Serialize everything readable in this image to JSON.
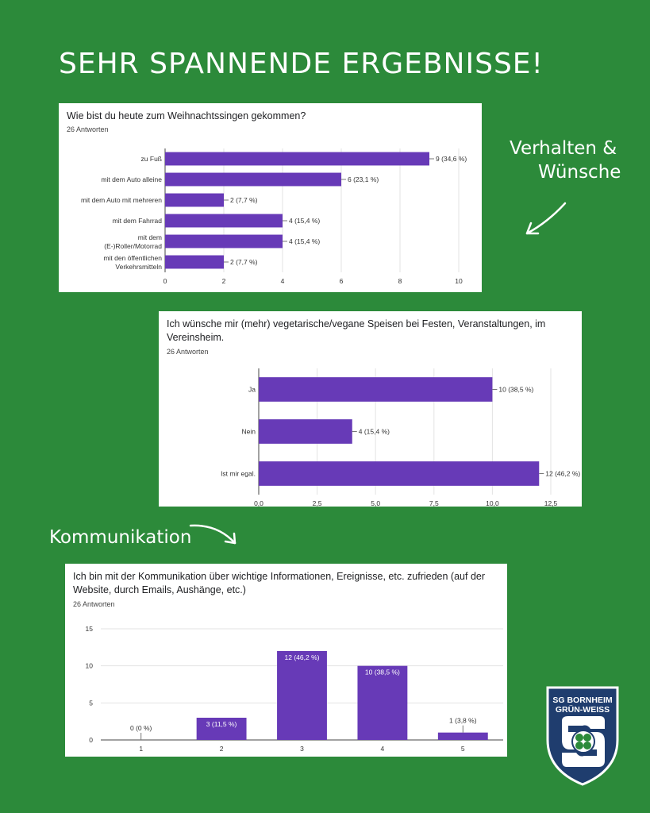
{
  "headline": "SEHR SPANNENDE ERGEBNISSE!",
  "annotations": {
    "section1_line1": "Verhalten &",
    "section1_line2": "Wünsche",
    "section2": "Kommunikation"
  },
  "logo": {
    "line1": "SG BORNHEIM",
    "line2": "GRÜN-WEISS",
    "icon": "clover-icon"
  },
  "colors": {
    "background": "#2c8a3a",
    "bar": "#673ab7",
    "logo_navy": "#1f3d6e"
  },
  "chart_data": [
    {
      "type": "bar",
      "orientation": "horizontal",
      "title": "Wie bist du heute zum Weihnachtssingen gekommen?",
      "subtitle": "26 Antworten",
      "categories": [
        "zu Fuß",
        "mit dem Auto alleine",
        "mit dem Auto mit mehreren",
        "mit dem Fahrrad",
        "mit dem (E-)Roller/Motorrad",
        "mit den öffentlichen Verkehrsmitteln"
      ],
      "values": [
        9,
        6,
        2,
        4,
        4,
        2
      ],
      "data_labels": [
        "9 (34,6 %)",
        "6 (23,1 %)",
        "2 (7,7 %)",
        "4 (15,4 %)",
        "4 (15,4 %)",
        "2 (7,7 %)"
      ],
      "xlim": [
        0,
        10
      ],
      "ticks": [
        0,
        2,
        4,
        6,
        8,
        10
      ],
      "tick_labels": [
        "0",
        "2",
        "4",
        "6",
        "8",
        "10"
      ],
      "grid": true
    },
    {
      "type": "bar",
      "orientation": "horizontal",
      "title": "Ich wünsche mir (mehr) vegetarische/vegane Speisen bei Festen, Veranstaltungen, im Vereinsheim.",
      "subtitle": "26 Antworten",
      "categories": [
        "Ja",
        "Nein",
        "Ist mir egal."
      ],
      "values": [
        10,
        4,
        12
      ],
      "data_labels": [
        "10 (38,5 %)",
        "4 (15,4 %)",
        "12 (46,2 %)"
      ],
      "xlim": [
        0,
        12.5
      ],
      "ticks": [
        0,
        2.5,
        5,
        7.5,
        10,
        12.5
      ],
      "tick_labels": [
        "0,0",
        "2,5",
        "5,0",
        "7,5",
        "10,0",
        "12,5"
      ],
      "grid": true
    },
    {
      "type": "bar",
      "orientation": "vertical",
      "title": "Ich bin mit der Kommunikation über wichtige Informationen, Ereignisse, etc. zufrieden (auf der Website, durch Emails, Aushänge, etc.)",
      "subtitle": "26 Antworten",
      "categories": [
        "1",
        "2",
        "3",
        "4",
        "5"
      ],
      "values": [
        0,
        3,
        12,
        10,
        1
      ],
      "data_labels": [
        "0 (0 %)",
        "3 (11,5 %)",
        "12 (46,2 %)",
        "10 (38,5 %)",
        "1 (3,8 %)"
      ],
      "ylim": [
        0,
        15
      ],
      "ticks": [
        0,
        5,
        10,
        15
      ],
      "tick_labels": [
        "0",
        "5",
        "10",
        "15"
      ],
      "grid": true
    }
  ]
}
